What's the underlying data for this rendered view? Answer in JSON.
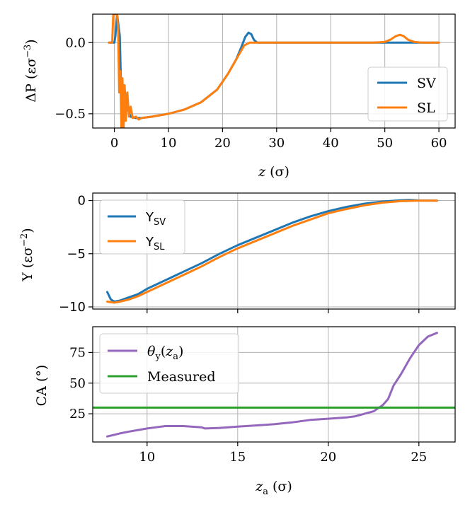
{
  "chart_data": [
    {
      "type": "line",
      "ylabel_text": "ΔP (εσ",
      "ylabel_exp": "−3",
      "ylabel_close": ")",
      "xlabel_var": "z",
      "xlabel_unit": " (σ)",
      "xlim": [
        -4,
        63
      ],
      "ylim": [
        -0.6,
        0.2
      ],
      "xticks": [
        0,
        10,
        20,
        30,
        40,
        50,
        60
      ],
      "yticks": [
        0.0,
        -0.5
      ],
      "ytick_labels": [
        "0.0",
        "−0.5"
      ],
      "grid": true,
      "legend": {
        "position": "lower-right",
        "entries": [
          "SV",
          "SL"
        ]
      },
      "series": [
        {
          "name": "SV",
          "color": "#1f77b4",
          "points": [
            [
              -1,
              0
            ],
            [
              0,
              0
            ],
            [
              0.2,
              0.05
            ],
            [
              0.5,
              0.2
            ],
            [
              1.0,
              0.05
            ],
            [
              1.3,
              -0.4
            ],
            [
              1.8,
              -0.3
            ],
            [
              2.3,
              -0.45
            ],
            [
              3,
              -0.52
            ],
            [
              4,
              -0.53
            ],
            [
              5,
              -0.53
            ],
            [
              7,
              -0.52
            ],
            [
              10,
              -0.5
            ],
            [
              13,
              -0.47
            ],
            [
              16,
              -0.42
            ],
            [
              19,
              -0.33
            ],
            [
              21,
              -0.22
            ],
            [
              22.5,
              -0.12
            ],
            [
              23.5,
              -0.03
            ],
            [
              24.2,
              0.04
            ],
            [
              24.8,
              0.07
            ],
            [
              25.3,
              0.06
            ],
            [
              25.8,
              0.02
            ],
            [
              26.4,
              0.0
            ],
            [
              30,
              0
            ],
            [
              40,
              0
            ],
            [
              50,
              0
            ],
            [
              60,
              0
            ]
          ]
        },
        {
          "name": "SL",
          "color": "#ff7f0e",
          "points": [
            [
              -1,
              0
            ],
            [
              -0.4,
              0
            ],
            [
              -0.2,
              0.2
            ],
            [
              0.2,
              0.2
            ],
            [
              0.5,
              0.2
            ],
            [
              0.7,
              0.1
            ],
            [
              0.9,
              -0.35
            ],
            [
              1.1,
              -0.2
            ],
            [
              1.3,
              -0.6
            ],
            [
              1.5,
              -0.25
            ],
            [
              1.7,
              -0.6
            ],
            [
              1.9,
              -0.3
            ],
            [
              2.1,
              -0.55
            ],
            [
              2.4,
              -0.35
            ],
            [
              2.7,
              -0.52
            ],
            [
              3,
              -0.45
            ],
            [
              3.4,
              -0.53
            ],
            [
              4,
              -0.52
            ],
            [
              4.5,
              -0.54
            ],
            [
              5,
              -0.53
            ],
            [
              7,
              -0.52
            ],
            [
              10,
              -0.5
            ],
            [
              13,
              -0.47
            ],
            [
              16,
              -0.42
            ],
            [
              19,
              -0.33
            ],
            [
              21,
              -0.22
            ],
            [
              22.5,
              -0.12
            ],
            [
              24,
              -0.02
            ],
            [
              25,
              0.0
            ],
            [
              26,
              0.0
            ],
            [
              30,
              0
            ],
            [
              40,
              0
            ],
            [
              48,
              0
            ],
            [
              50,
              0.005
            ],
            [
              51,
              0.02
            ],
            [
              52,
              0.045
            ],
            [
              52.8,
              0.055
            ],
            [
              53.5,
              0.045
            ],
            [
              54.3,
              0.02
            ],
            [
              55.5,
              0.004
            ],
            [
              57,
              0
            ],
            [
              60,
              0
            ]
          ]
        }
      ]
    },
    {
      "type": "line",
      "ylabel_text": "Υ (εσ",
      "ylabel_exp": "−2",
      "ylabel_close": ")",
      "xlim": [
        7,
        27
      ],
      "ylim": [
        -10.2,
        0.7
      ],
      "xticks": [
        10,
        15,
        20,
        25
      ],
      "yticks": [
        0,
        -5,
        -10
      ],
      "ytick_labels": [
        "0",
        "−5",
        "−10"
      ],
      "grid": true,
      "legend": {
        "position": "upper-left",
        "entries": [
          "SV",
          "SL"
        ],
        "prefix": "Υ"
      },
      "series": [
        {
          "name": "ΥSV",
          "color": "#1f77b4",
          "points": [
            [
              7.8,
              -8.6
            ],
            [
              8.0,
              -9.3
            ],
            [
              8.2,
              -9.5
            ],
            [
              8.5,
              -9.4
            ],
            [
              9.0,
              -9.1
            ],
            [
              9.5,
              -8.8
            ],
            [
              10,
              -8.3
            ],
            [
              11,
              -7.5
            ],
            [
              12,
              -6.7
            ],
            [
              13,
              -5.9
            ],
            [
              14,
              -5.0
            ],
            [
              15,
              -4.2
            ],
            [
              16,
              -3.5
            ],
            [
              17,
              -2.8
            ],
            [
              18,
              -2.1
            ],
            [
              19,
              -1.5
            ],
            [
              20,
              -1.0
            ],
            [
              21,
              -0.6
            ],
            [
              22,
              -0.3
            ],
            [
              23,
              -0.1
            ],
            [
              24,
              0.02
            ],
            [
              24.5,
              0.05
            ],
            [
              25,
              0.0
            ],
            [
              26,
              -0.02
            ]
          ]
        },
        {
          "name": "ΥSL",
          "color": "#ff7f0e",
          "points": [
            [
              7.8,
              -9.5
            ],
            [
              8.2,
              -9.6
            ],
            [
              8.5,
              -9.5
            ],
            [
              9.0,
              -9.3
            ],
            [
              9.5,
              -9.0
            ],
            [
              10,
              -8.6
            ],
            [
              11,
              -7.8
            ],
            [
              12,
              -7.0
            ],
            [
              13,
              -6.2
            ],
            [
              14,
              -5.3
            ],
            [
              15,
              -4.5
            ],
            [
              16,
              -3.8
            ],
            [
              17,
              -3.1
            ],
            [
              18,
              -2.4
            ],
            [
              19,
              -1.8
            ],
            [
              20,
              -1.2
            ],
            [
              21,
              -0.8
            ],
            [
              22,
              -0.45
            ],
            [
              23,
              -0.2
            ],
            [
              24,
              -0.06
            ],
            [
              25,
              -0.02
            ],
            [
              26,
              -0.02
            ]
          ]
        }
      ]
    },
    {
      "type": "line",
      "ylabel_text": "CA (°)",
      "xlabel_var": "z",
      "xlabel_sub": "a",
      "xlabel_unit": " (σ)",
      "xlim": [
        7,
        27
      ],
      "ylim": [
        2,
        96
      ],
      "xticks": [
        10,
        15,
        20,
        25
      ],
      "yticks": [
        25,
        50,
        75
      ],
      "ytick_labels": [
        "25",
        "50",
        "75"
      ],
      "grid": true,
      "legend": {
        "position": "upper-left",
        "entries": [
          "θ",
          "Measured"
        ]
      },
      "series": [
        {
          "name": "θy(za)",
          "color": "#9467bd",
          "points": [
            [
              7.8,
              6.5
            ],
            [
              8.5,
              9
            ],
            [
              9.0,
              10.5
            ],
            [
              10,
              13
            ],
            [
              10.5,
              14
            ],
            [
              11,
              15
            ],
            [
              12,
              15
            ],
            [
              13,
              14
            ],
            [
              13.2,
              13
            ],
            [
              14,
              13.5
            ],
            [
              15,
              14.5
            ],
            [
              16,
              15.5
            ],
            [
              17,
              16.5
            ],
            [
              18,
              18
            ],
            [
              19,
              20
            ],
            [
              20,
              21
            ],
            [
              21,
              22
            ],
            [
              21.5,
              23
            ],
            [
              22,
              25
            ],
            [
              22.5,
              27
            ],
            [
              23,
              32
            ],
            [
              23.3,
              37
            ],
            [
              23.6,
              48
            ],
            [
              24,
              57
            ],
            [
              24.5,
              70
            ],
            [
              25,
              81
            ],
            [
              25.5,
              88
            ],
            [
              26,
              91
            ]
          ]
        },
        {
          "name": "Measured",
          "color": "#2ca02c",
          "points": [
            [
              7,
              30
            ],
            [
              27,
              30
            ]
          ]
        }
      ]
    }
  ]
}
